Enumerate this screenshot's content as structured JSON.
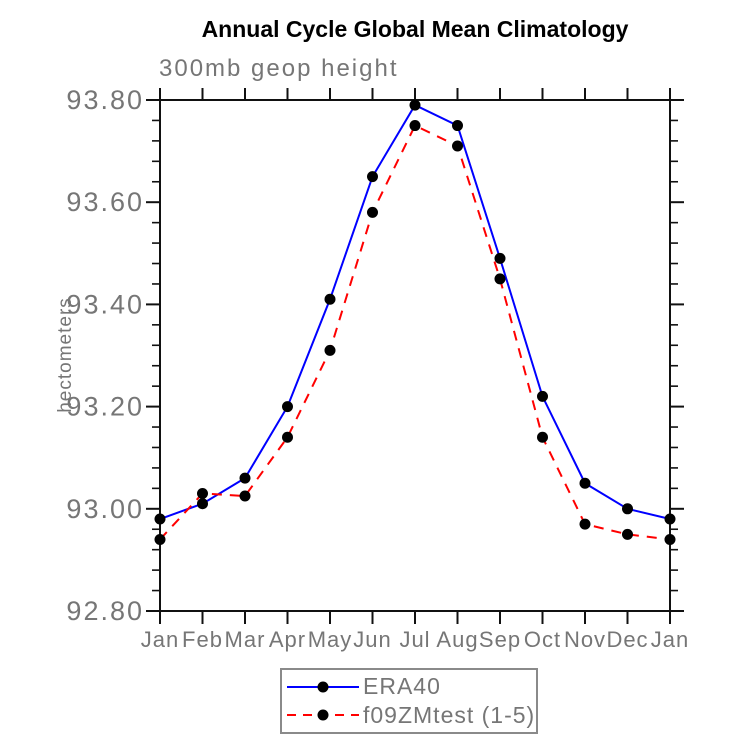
{
  "styles": {
    "background": "#ffffff",
    "text_gray": "#767676",
    "axis_color": "#111111",
    "legend_border": "#8a8a8a"
  },
  "chart_data": {
    "type": "line",
    "title": "Annual Cycle Global Mean Climatology",
    "subtitle": "300mb geop height",
    "ylabel": "hectometers",
    "xlabel": "",
    "categories": [
      "Jan",
      "Feb",
      "Mar",
      "Apr",
      "May",
      "Jun",
      "Jul",
      "Aug",
      "Sep",
      "Oct",
      "Nov",
      "Dec",
      "Jan"
    ],
    "series": [
      {
        "name": "ERA40",
        "color": "#0000ff",
        "style": "solid",
        "marker_color": "#000000",
        "values": [
          92.98,
          93.01,
          93.06,
          93.2,
          93.41,
          93.65,
          93.79,
          93.75,
          93.49,
          93.22,
          93.05,
          93.0,
          92.98
        ]
      },
      {
        "name": "f09ZMtest (1-5)",
        "color": "#ff0000",
        "style": "dashed",
        "marker_color": "#000000",
        "values": [
          92.94,
          93.03,
          93.025,
          93.14,
          93.31,
          93.58,
          93.75,
          93.71,
          93.45,
          93.14,
          92.97,
          92.95,
          92.94
        ]
      }
    ],
    "ylim": [
      92.8,
      93.8
    ],
    "y_major_ticks": [
      92.8,
      93.0,
      93.2,
      93.4,
      93.6,
      93.8
    ],
    "y_tick_format": "2dp",
    "y_minor_step": 0.04,
    "grid": "off",
    "legend_position": "bottom-center",
    "marker": "filled-circle"
  }
}
